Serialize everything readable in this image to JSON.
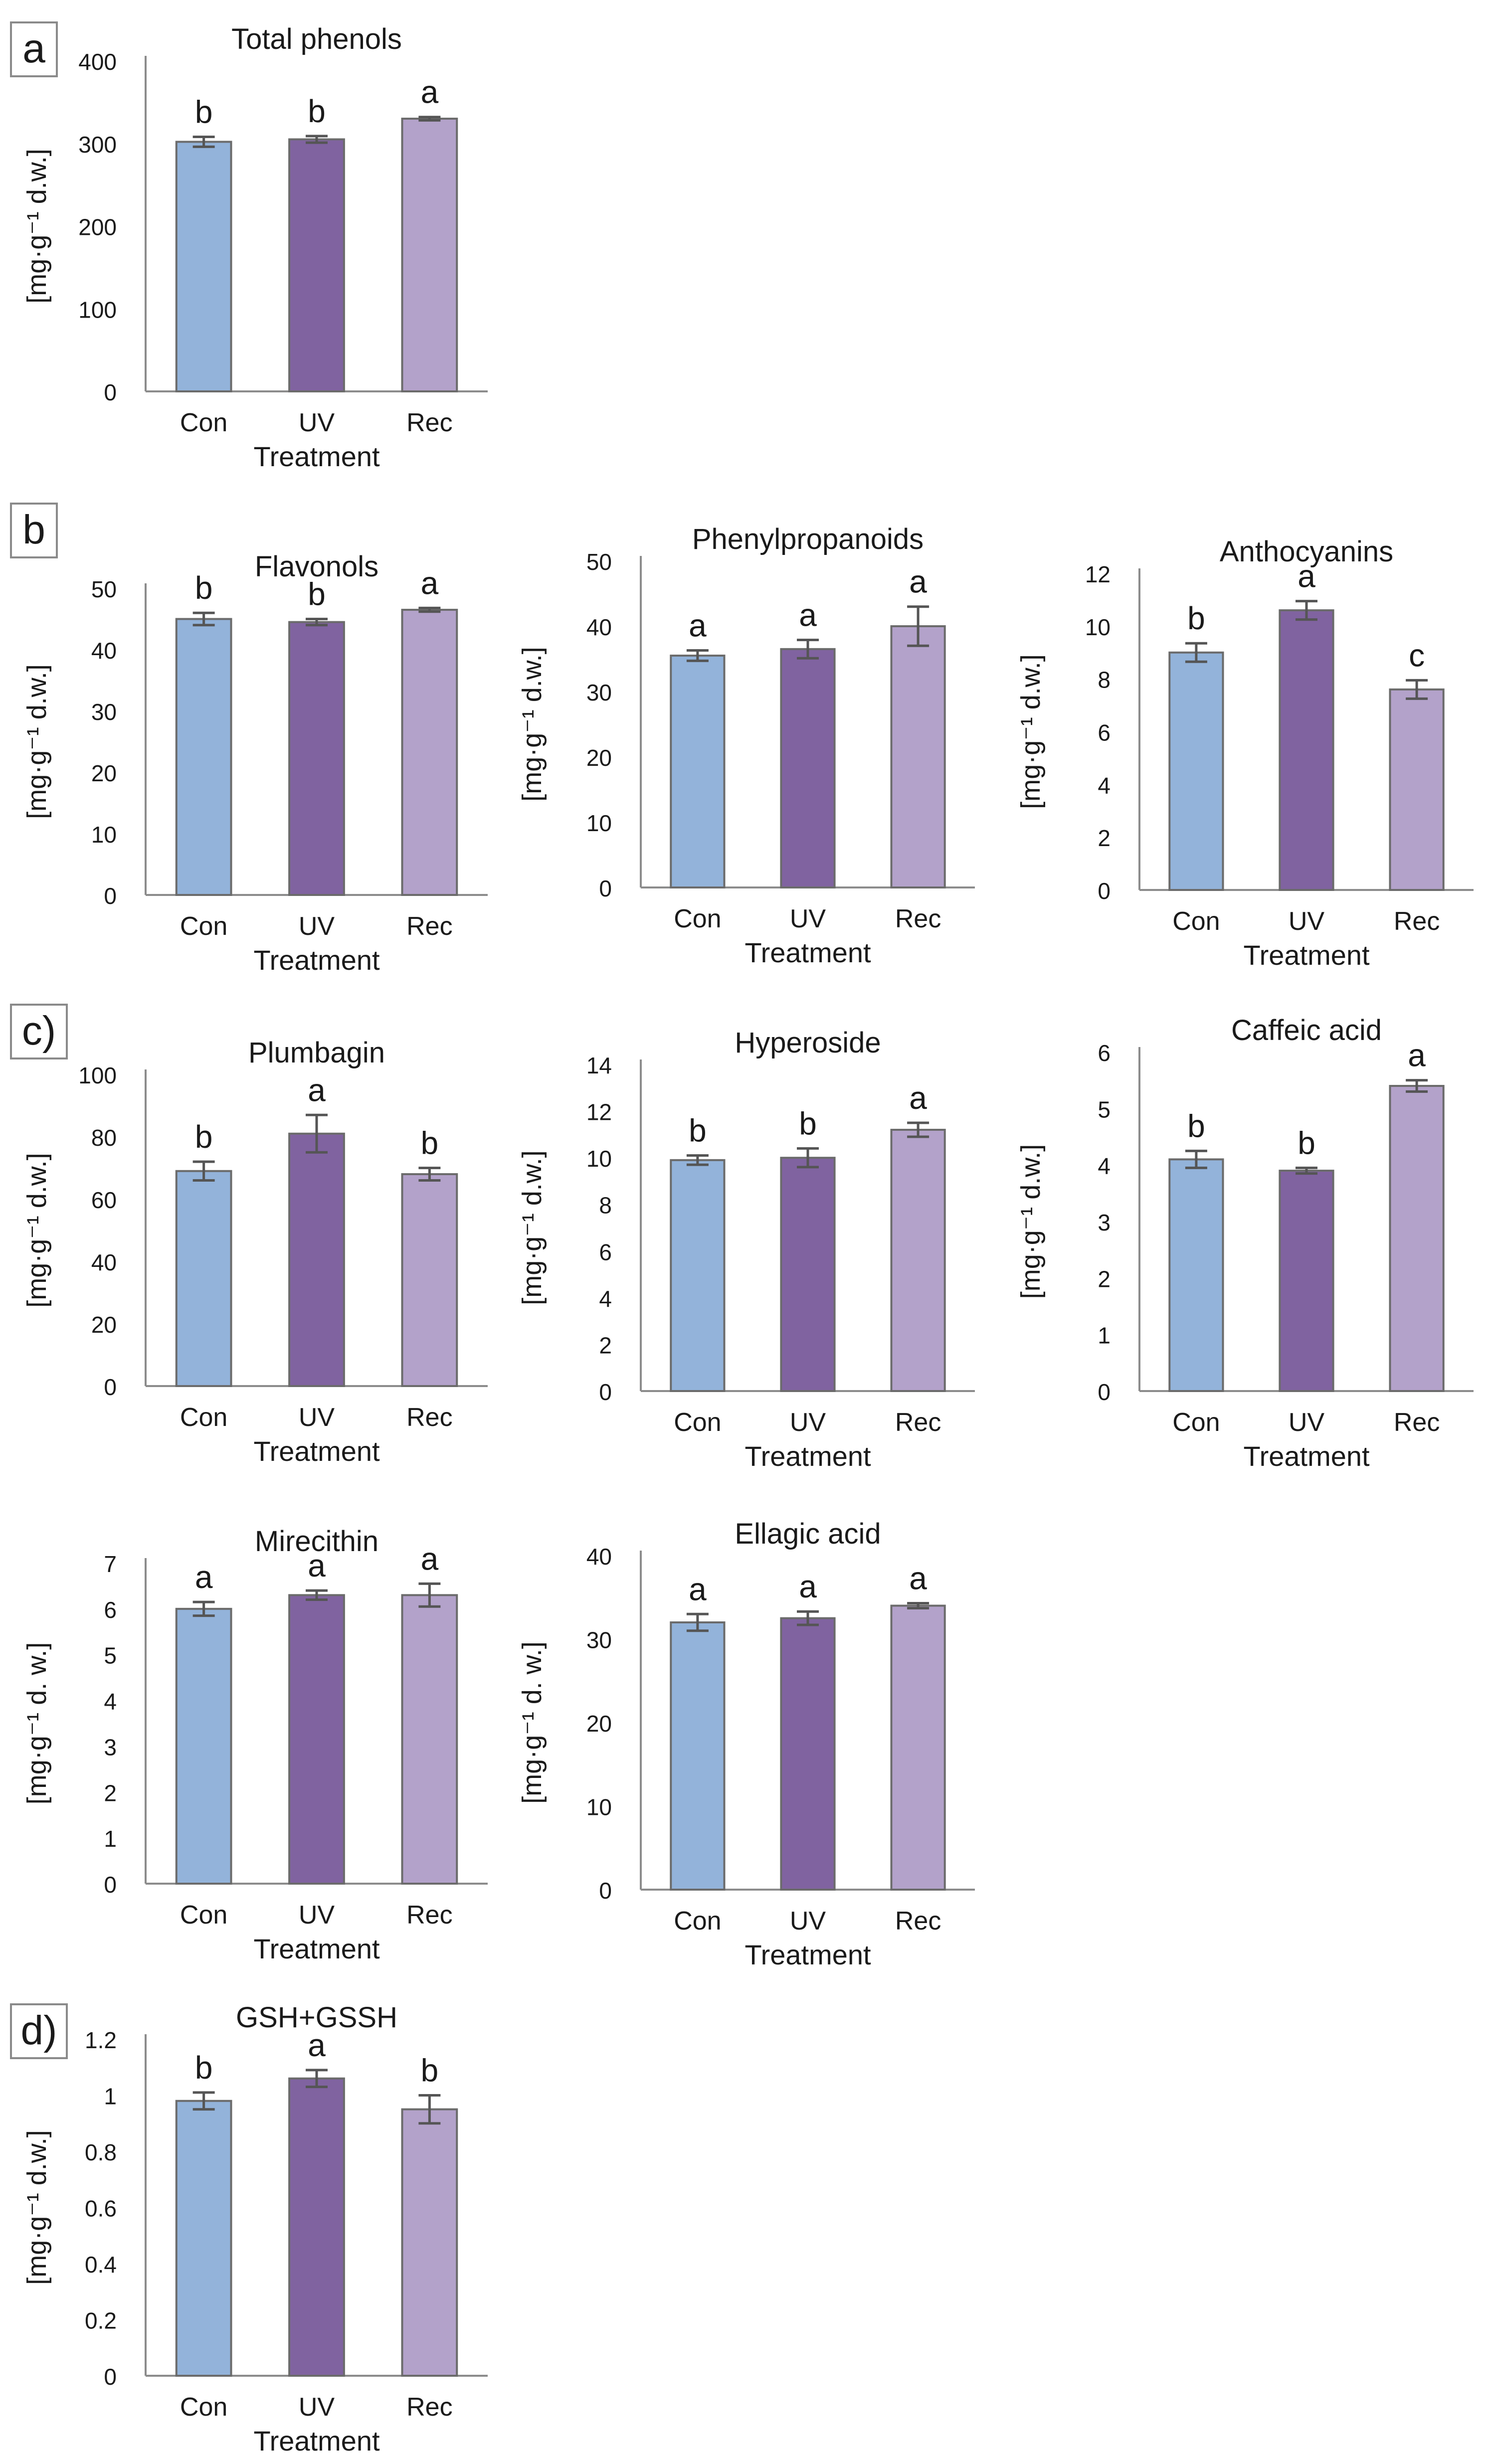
{
  "colors": {
    "Con": "#93b3da",
    "UV": "#8063a0",
    "Rec": "#b3a2ca"
  },
  "panel_labels": [
    "a",
    "b",
    "c)",
    "d)"
  ],
  "chart_data": [
    {
      "type": "bar",
      "title": "Total phenols",
      "categories": [
        "Con",
        "UV",
        "Rec"
      ],
      "values": [
        302,
        305,
        330
      ],
      "errors": [
        6,
        4,
        2
      ],
      "letters": [
        "b",
        "b",
        "a"
      ],
      "ylabel": "[mg·g⁻¹ d.w.]",
      "xlabel": "Treatment",
      "ylim": [
        0,
        400
      ],
      "yticks": [
        "0",
        "100",
        "200",
        "300",
        "400"
      ]
    },
    {
      "type": "bar",
      "title": "Flavonols",
      "categories": [
        "Con",
        "UV",
        "Rec"
      ],
      "values": [
        45,
        44.5,
        46.5
      ],
      "errors": [
        1,
        0.5,
        0.3
      ],
      "letters": [
        "b",
        "b",
        "a"
      ],
      "ylabel": "[mg·g⁻¹ d.w.]",
      "xlabel": "Treatment",
      "ylim": [
        0,
        50
      ],
      "yticks": [
        "0",
        "10",
        "20",
        "30",
        "40",
        "50"
      ]
    },
    {
      "type": "bar",
      "title": "Phenylpropanoids",
      "categories": [
        "Con",
        "UV",
        "Rec"
      ],
      "values": [
        35.5,
        36.5,
        40
      ],
      "errors": [
        0.8,
        1.4,
        3
      ],
      "letters": [
        "a",
        "a",
        "a"
      ],
      "ylabel": "[mg·g⁻¹ d.w.]",
      "xlabel": "Treatment",
      "ylim": [
        0,
        50
      ],
      "yticks": [
        "0",
        "10",
        "20",
        "30",
        "40",
        "50"
      ]
    },
    {
      "type": "bar",
      "title": "Anthocyanins",
      "categories": [
        "Con",
        "UV",
        "Rec"
      ],
      "values": [
        9,
        10.6,
        7.6
      ],
      "errors": [
        0.35,
        0.35,
        0.35
      ],
      "letters": [
        "b",
        "a",
        "c"
      ],
      "ylabel": "[mg·g⁻¹ d.w.]",
      "xlabel": "Treatment",
      "ylim": [
        0,
        12
      ],
      "yticks": [
        "0",
        "2",
        "4",
        "6",
        "8",
        "10",
        "12"
      ]
    },
    {
      "type": "bar",
      "title": "Plumbagin",
      "categories": [
        "Con",
        "UV",
        "Rec"
      ],
      "values": [
        69,
        81,
        68
      ],
      "errors": [
        3,
        6,
        2
      ],
      "letters": [
        "b",
        "a",
        "b"
      ],
      "ylabel": "[mg·g⁻¹ d.w.]",
      "xlabel": "Treatment",
      "ylim": [
        0,
        100
      ],
      "yticks": [
        "0",
        "20",
        "40",
        "60",
        "80",
        "100"
      ]
    },
    {
      "type": "bar",
      "title": "Hyperoside",
      "categories": [
        "Con",
        "UV",
        "Rec"
      ],
      "values": [
        9.9,
        10,
        11.2
      ],
      "errors": [
        0.2,
        0.4,
        0.3
      ],
      "letters": [
        "b",
        "b",
        "a"
      ],
      "ylabel": "[mg·g⁻¹ d.w.]",
      "xlabel": "Treatment",
      "ylim": [
        0,
        14
      ],
      "yticks": [
        "0",
        "2",
        "4",
        "6",
        "8",
        "10",
        "12",
        "14"
      ]
    },
    {
      "type": "bar",
      "title": "Caffeic acid",
      "categories": [
        "Con",
        "UV",
        "Rec"
      ],
      "values": [
        4.1,
        3.9,
        5.4
      ],
      "errors": [
        0.15,
        0.05,
        0.1
      ],
      "letters": [
        "b",
        "b",
        "a"
      ],
      "ylabel": "[mg·g⁻¹ d.w.]",
      "xlabel": "Treatment",
      "ylim": [
        0,
        6
      ],
      "yticks": [
        "0",
        "1",
        "2",
        "3",
        "4",
        "5",
        "6"
      ]
    },
    {
      "type": "bar",
      "title": "Mirecithin",
      "categories": [
        "Con",
        "UV",
        "Rec"
      ],
      "values": [
        6,
        6.3,
        6.3
      ],
      "errors": [
        0.15,
        0.1,
        0.25
      ],
      "letters": [
        "a",
        "a",
        "a"
      ],
      "ylabel": "[mg·g⁻¹ d. w.]",
      "xlabel": "Treatment",
      "ylim": [
        0,
        7
      ],
      "yticks": [
        "0",
        "1",
        "2",
        "3",
        "4",
        "5",
        "6",
        "7"
      ]
    },
    {
      "type": "bar",
      "title": "Ellagic acid",
      "categories": [
        "Con",
        "UV",
        "Rec"
      ],
      "values": [
        32,
        32.5,
        34
      ],
      "errors": [
        1,
        0.8,
        0.3
      ],
      "letters": [
        "a",
        "a",
        "a"
      ],
      "ylabel": "[mg·g⁻¹ d. w.]",
      "xlabel": "Treatment",
      "ylim": [
        0,
        40
      ],
      "yticks": [
        "0",
        "10",
        "20",
        "30",
        "40"
      ]
    },
    {
      "type": "bar",
      "title": "GSH+GSSH",
      "categories": [
        "Con",
        "UV",
        "Rec"
      ],
      "values": [
        0.98,
        1.06,
        0.95
      ],
      "errors": [
        0.03,
        0.03,
        0.05
      ],
      "letters": [
        "b",
        "a",
        "b"
      ],
      "ylabel": "[mg·g⁻¹ d.w.]",
      "xlabel": "Treatment",
      "ylim": [
        0,
        1.2
      ],
      "yticks": [
        "0",
        "0.2",
        "0.4",
        "0.6",
        "0.8",
        "1",
        "1.2"
      ]
    }
  ]
}
